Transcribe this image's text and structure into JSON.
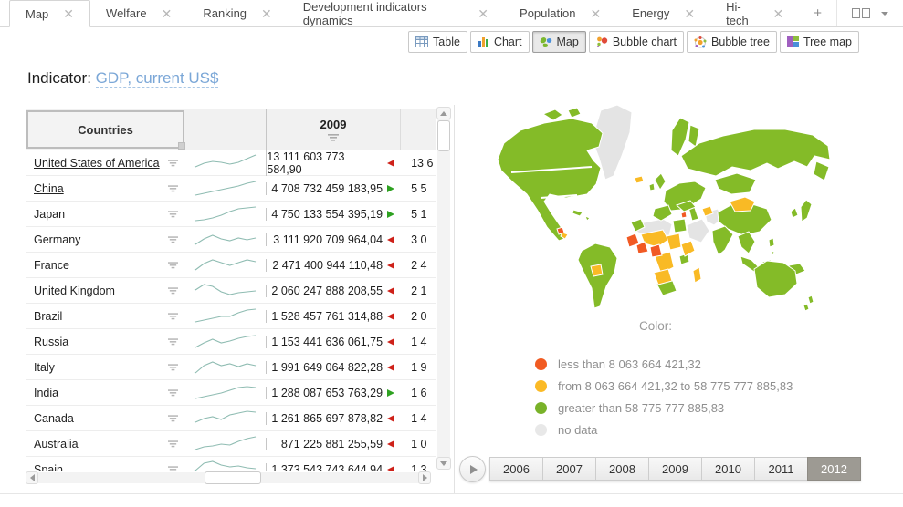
{
  "colors": {
    "map_green": "#84BB28",
    "map_yellow": "#F9BA25",
    "map_red": "#F15A24",
    "map_gray": "#E4E4E4",
    "trend_red": "#CE2119",
    "trend_green": "#2EA121",
    "spark": "#8FBCB2",
    "link_blue": "#7BA7D7"
  },
  "tabs": {
    "items": [
      {
        "label": "Map",
        "active": true
      },
      {
        "label": "Welfare",
        "active": false
      },
      {
        "label": "Ranking",
        "active": false
      },
      {
        "label": "Development indicators dynamics",
        "active": false
      },
      {
        "label": "Population",
        "active": false
      },
      {
        "label": "Energy",
        "active": false
      },
      {
        "label": "Hi-tech",
        "active": false
      }
    ],
    "add_label": "+"
  },
  "view_switcher": [
    {
      "label": "Table",
      "active": false
    },
    {
      "label": "Chart",
      "active": false
    },
    {
      "label": "Map",
      "active": true
    },
    {
      "label": "Bubble chart",
      "active": false
    },
    {
      "label": "Bubble tree",
      "active": false
    },
    {
      "label": "Tree map",
      "active": false
    }
  ],
  "indicator": {
    "label": "Indicator:",
    "value": "GDP, current US$"
  },
  "table": {
    "countries_header": "Countries",
    "year_header": "2009",
    "rows": [
      {
        "country": "United States of America",
        "underlined": true,
        "value": "13 111 603 773 584,90",
        "trend": "down",
        "next": "13 6",
        "spark": [
          16,
          12,
          10,
          11,
          13,
          11,
          7,
          3
        ]
      },
      {
        "country": "China",
        "underlined": true,
        "value": "4 708 732 459 183,95",
        "trend": "up",
        "next": "5 5",
        "spark": [
          19,
          17,
          15,
          13,
          11,
          9,
          6,
          4
        ]
      },
      {
        "country": "Japan",
        "underlined": false,
        "value": "4 750 133 554 395,19",
        "trend": "up",
        "next": "5 1",
        "spark": [
          19,
          18,
          16,
          13,
          9,
          6,
          5,
          4
        ]
      },
      {
        "country": "Germany",
        "underlined": false,
        "value": "3 111 920 709 964,04",
        "trend": "down",
        "next": "3 0",
        "spark": [
          17,
          11,
          7,
          11,
          13,
          10,
          12,
          10
        ]
      },
      {
        "country": "France",
        "underlined": false,
        "value": "2 471 400 944 110,48",
        "trend": "down",
        "next": "2 4",
        "spark": [
          17,
          10,
          6,
          9,
          12,
          9,
          6,
          8
        ]
      },
      {
        "country": "United Kingdom",
        "underlined": false,
        "value": "2 060 247 888 208,55",
        "trend": "down",
        "next": "2 1",
        "spark": [
          11,
          5,
          7,
          13,
          16,
          14,
          13,
          12
        ]
      },
      {
        "country": "Brazil",
        "underlined": false,
        "value": "1 528 457 761 314,88",
        "trend": "down",
        "next": "2 0",
        "spark": [
          18,
          16,
          14,
          12,
          12,
          8,
          5,
          4
        ]
      },
      {
        "country": "Russia",
        "underlined": true,
        "value": "1 153 441 636 061,75",
        "trend": "down",
        "next": "1 4",
        "spark": [
          18,
          13,
          9,
          13,
          11,
          8,
          6,
          5
        ]
      },
      {
        "country": "Italy",
        "underlined": false,
        "value": "1 991 649 064 822,28",
        "trend": "down",
        "next": "1 9",
        "spark": [
          18,
          10,
          6,
          10,
          8,
          11,
          8,
          10
        ]
      },
      {
        "country": "India",
        "underlined": false,
        "value": "1 288 087 653 763,29",
        "trend": "up",
        "next": "1 6",
        "spark": [
          18,
          16,
          14,
          12,
          9,
          6,
          5,
          6
        ]
      },
      {
        "country": "Canada",
        "underlined": false,
        "value": "1 261 865 697 878,82",
        "trend": "down",
        "next": "1 4",
        "spark": [
          16,
          12,
          10,
          13,
          8,
          6,
          4,
          5
        ]
      },
      {
        "country": "Australia",
        "underlined": false,
        "value": "871 225 881 255,59",
        "trend": "down",
        "next": "1 0",
        "spark": [
          18,
          15,
          14,
          12,
          13,
          9,
          6,
          4
        ]
      },
      {
        "country": "Spain",
        "underlined": false,
        "value": "1 373 543 743 644,94",
        "trend": "down",
        "next": "1 3",
        "spark": [
          13,
          5,
          3,
          7,
          9,
          8,
          10,
          11
        ]
      }
    ]
  },
  "map": {
    "legend_title": "Color:",
    "legend": [
      {
        "color": "#F15B22",
        "label": "less than 8 063 664 421,32"
      },
      {
        "color": "#FBBA26",
        "label": "from 8 063 664 421,32 to 58 775 777 885,83"
      },
      {
        "color": "#79B229",
        "label": "greater than 58 775 777 885,83"
      },
      {
        "color": "#E8E8E8",
        "label": "no data"
      }
    ]
  },
  "timeline": {
    "years": [
      "2006",
      "2007",
      "2008",
      "2009",
      "2010",
      "2011",
      "2012"
    ],
    "selected": "2012"
  }
}
